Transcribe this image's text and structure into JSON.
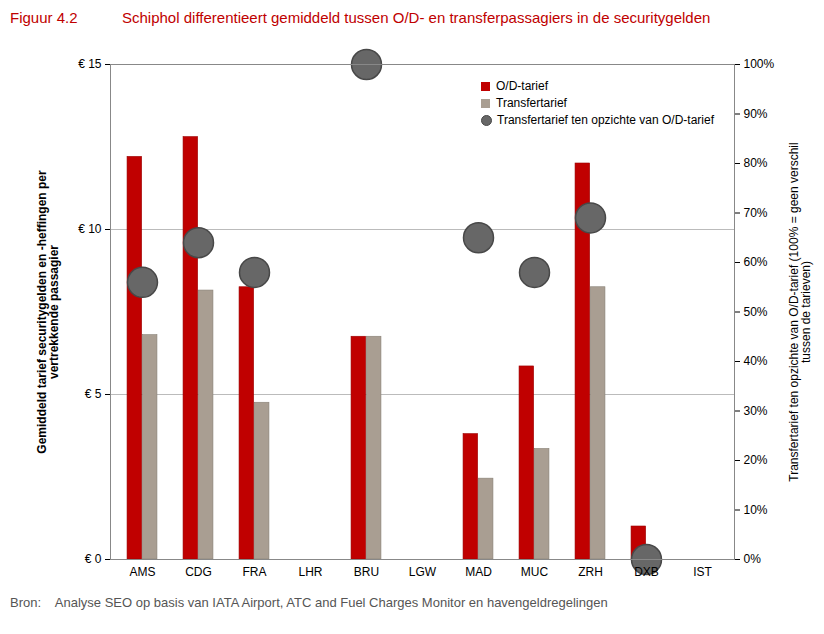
{
  "chart_data": {
    "type": "bar",
    "figure_number": "Figuur 4.2",
    "title": "Schiphol differentieert gemiddeld tussen O/D- en transferpassagiers in de securitygelden",
    "source_label": "Bron:",
    "source": "Analyse SEO op basis van IATA Airport, ATC and Fuel Charges Monitor en havengeldregelingen",
    "y_label": "Gemiddeld tarief securitygelden en -heffingen per vertrekkende passagier",
    "y2_label": "Transfertarief ten opzichte van O/D-tarief (100% = geen verschil tussen de tarieven)",
    "categories": [
      "AMS",
      "CDG",
      "FRA",
      "LHR",
      "BRU",
      "LGW",
      "MAD",
      "MUC",
      "ZRH",
      "DXB",
      "IST"
    ],
    "series": [
      {
        "name": "O/D-tarief",
        "type": "bar",
        "color": "#c00000",
        "values": [
          12.2,
          12.8,
          8.25,
          null,
          6.75,
          null,
          3.8,
          5.85,
          12.0,
          1.0,
          null
        ]
      },
      {
        "name": "Transfertarief",
        "type": "bar",
        "color": "#a99e92",
        "values": [
          6.8,
          8.15,
          4.75,
          null,
          6.75,
          null,
          2.45,
          3.35,
          8.25,
          0,
          null
        ]
      },
      {
        "name": "Transfertarief ten opzichte van O/D-tarief",
        "type": "scatter",
        "marker": "circle",
        "axis": "y2",
        "color": "#676767",
        "values": [
          56,
          64,
          58,
          null,
          100,
          null,
          65,
          58,
          69,
          0,
          null
        ]
      }
    ],
    "ylim": [
      0,
      15
    ],
    "yticks": [
      {
        "value": 0,
        "label": "€ 0"
      },
      {
        "value": 5,
        "label": "€ 5"
      },
      {
        "value": 10,
        "label": "€ 10"
      },
      {
        "value": 15,
        "label": "€ 15"
      }
    ],
    "y2lim": [
      0,
      100
    ],
    "y2ticks": [
      {
        "value": 0,
        "label": "0%"
      },
      {
        "value": 10,
        "label": "10%"
      },
      {
        "value": 20,
        "label": "20%"
      },
      {
        "value": 30,
        "label": "30%"
      },
      {
        "value": 40,
        "label": "40%"
      },
      {
        "value": 50,
        "label": "50%"
      },
      {
        "value": 60,
        "label": "60%"
      },
      {
        "value": 70,
        "label": "70%"
      },
      {
        "value": 80,
        "label": "80%"
      },
      {
        "value": 90,
        "label": "90%"
      },
      {
        "value": 100,
        "label": "100%"
      }
    ],
    "grid": true,
    "legend": "top-right"
  }
}
